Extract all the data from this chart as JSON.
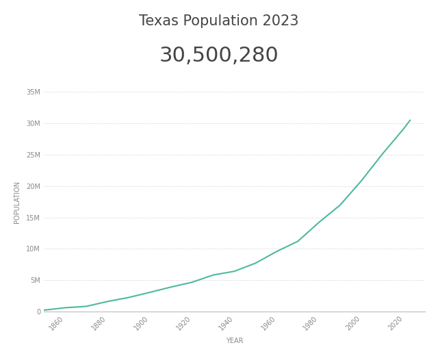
{
  "title": "Texas Population 2023",
  "subtitle": "30,500,280",
  "xlabel": "YEAR",
  "ylabel": "POPULATION",
  "line_color": "#4db89e",
  "background_color": "#ffffff",
  "grid_color": "#cccccc",
  "years": [
    1850,
    1860,
    1870,
    1880,
    1890,
    1900,
    1910,
    1920,
    1930,
    1940,
    1950,
    1960,
    1970,
    1980,
    1990,
    2000,
    2010,
    2020,
    2023
  ],
  "population": [
    212592,
    604215,
    818579,
    1591749,
    2235527,
    3048710,
    3896542,
    4663228,
    5824715,
    6414824,
    7711194,
    9579677,
    11196730,
    14229191,
    16986510,
    20851820,
    25145561,
    29145505,
    30500280
  ],
  "ylim": [
    0,
    35000000
  ],
  "xlim": [
    1850,
    2030
  ],
  "title_fontsize": 15,
  "subtitle_fontsize": 22,
  "axis_label_fontsize": 7,
  "tick_fontsize": 7,
  "title_color": "#444444",
  "subtitle_color": "#444444",
  "axis_label_color": "#888888",
  "tick_color": "#888888",
  "line_width": 1.5
}
